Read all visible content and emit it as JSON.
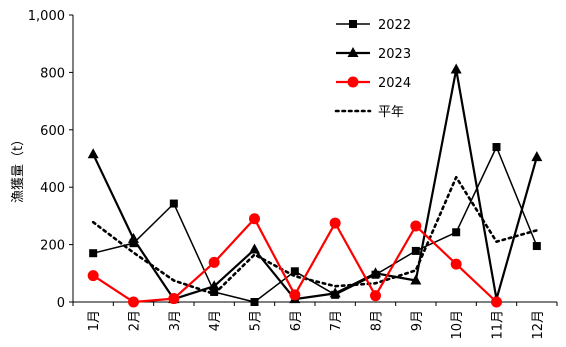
{
  "chart_data": {
    "type": "line",
    "categories": [
      "1月",
      "2月",
      "3月",
      "4月",
      "5月",
      "6月",
      "7月",
      "8月",
      "9月",
      "10月",
      "11月",
      "12月"
    ],
    "ylabel": "漁獲量（t）",
    "ylim": [
      0,
      1000
    ],
    "yticks": [
      0,
      200,
      400,
      600,
      800,
      1000
    ],
    "ytick_labels": [
      "0",
      "200",
      "400",
      "600",
      "800",
      "1,000"
    ],
    "grid": false,
    "legend_position": "top-center",
    "series": [
      {
        "name": "2022",
        "marker": "square",
        "color": "#000000",
        "line": "solid-thin",
        "values": [
          170,
          205,
          343,
          35,
          0,
          107,
          25,
          95,
          178,
          243,
          540,
          195
        ]
      },
      {
        "name": "2023",
        "marker": "triangle",
        "color": "#000000",
        "line": "solid-thick",
        "values": [
          515,
          220,
          10,
          55,
          183,
          10,
          30,
          100,
          75,
          810,
          10,
          505
        ]
      },
      {
        "name": "2024",
        "marker": "circle",
        "color": "#ff0000",
        "line": "solid-thick",
        "values": [
          92,
          0,
          12,
          138,
          290,
          25,
          275,
          22,
          265,
          132,
          0,
          null
        ]
      },
      {
        "name": "平年",
        "marker": "none",
        "color": "#000000",
        "line": "dotted",
        "values": [
          278,
          172,
          75,
          28,
          165,
          90,
          55,
          65,
          110,
          435,
          210,
          250
        ]
      }
    ]
  }
}
